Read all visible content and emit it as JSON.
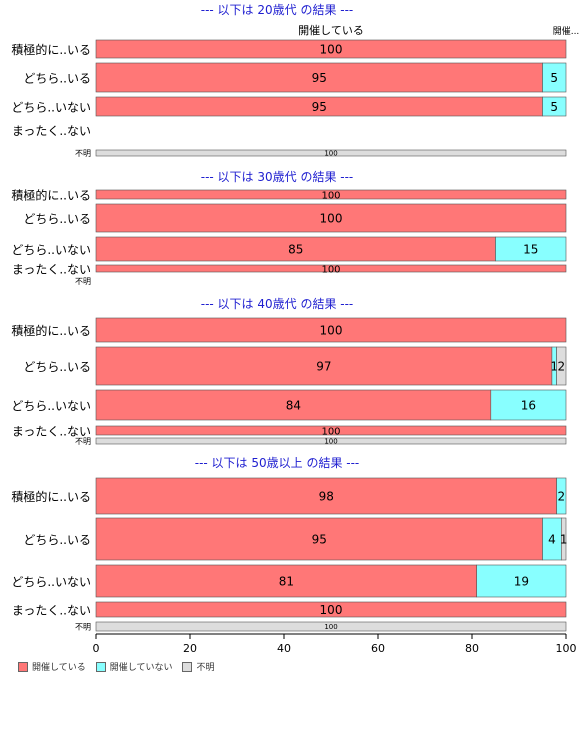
{
  "chart_data": {
    "type": "bar",
    "orientation": "horizontal",
    "stacked": true,
    "xlim": [
      0,
      100
    ],
    "xticks": [
      0,
      20,
      40,
      60,
      80,
      100
    ],
    "colors": {
      "開催している": "#ff7777",
      "開催していない": "#88ffff",
      "不明": "#dddddd",
      "title": "#1f1fd0"
    },
    "legend": {
      "position": "bottom-left",
      "items": [
        "開催している",
        "開催していない",
        "不明"
      ]
    },
    "top_labels": {
      "center": "開催している",
      "right": "開催..."
    },
    "panels": [
      {
        "title": "--- 以下は 20歳代 の結果 ---",
        "rows": [
          {
            "label": "積極的に..いる",
            "values": [
              100,
              0,
              0
            ]
          },
          {
            "label": "どちら..いる",
            "values": [
              95,
              5,
              0
            ]
          },
          {
            "label": "どちら..いない",
            "values": [
              95,
              5,
              0
            ]
          },
          {
            "label": "まったく..ない",
            "values": [
              0,
              0,
              0
            ]
          },
          {
            "label": "不明",
            "values": [
              0,
              0,
              100
            ]
          }
        ]
      },
      {
        "title": "--- 以下は 30歳代 の結果 ---",
        "rows": [
          {
            "label": "積極的に..いる",
            "values": [
              100,
              0,
              0
            ]
          },
          {
            "label": "どちら..いる",
            "values": [
              100,
              0,
              0
            ]
          },
          {
            "label": "どちら..いない",
            "values": [
              85,
              15,
              0
            ]
          },
          {
            "label": "まったく..ない",
            "values": [
              100,
              0,
              0
            ]
          },
          {
            "label": "不明",
            "values": [
              0,
              0,
              0
            ]
          }
        ]
      },
      {
        "title": "--- 以下は 40歳代 の結果 ---",
        "rows": [
          {
            "label": "積極的に..いる",
            "values": [
              100,
              0,
              0
            ]
          },
          {
            "label": "どちら..いる",
            "values": [
              97,
              1,
              2
            ]
          },
          {
            "label": "どちら..いない",
            "values": [
              84,
              16,
              0
            ]
          },
          {
            "label": "まったく..ない",
            "values": [
              100,
              0,
              0
            ]
          },
          {
            "label": "不明",
            "values": [
              0,
              0,
              100
            ]
          }
        ]
      },
      {
        "title": "--- 以下は 50歳以上 の結果 ---",
        "rows": [
          {
            "label": "積極的に..いる",
            "values": [
              98,
              2,
              0
            ]
          },
          {
            "label": "どちら..いる",
            "values": [
              95,
              4,
              1
            ]
          },
          {
            "label": "どちら..いない",
            "values": [
              81,
              19,
              0
            ]
          },
          {
            "label": "まったく..ない",
            "values": [
              100,
              0,
              0
            ]
          },
          {
            "label": "不明",
            "values": [
              0,
              0,
              100
            ]
          }
        ]
      }
    ]
  }
}
